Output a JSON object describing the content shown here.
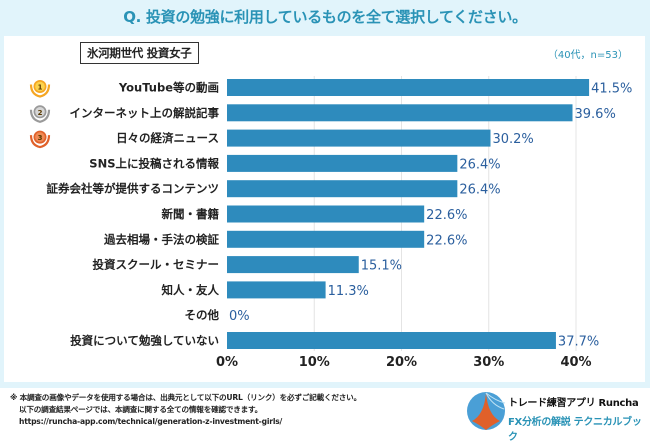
{
  "header": {
    "question": "Q. 投資の勉強に利用しているものを全て選択してください。",
    "segment_label": "氷河期世代 投資女子",
    "sample_note": "（40代，n=53）"
  },
  "colors": {
    "bar": "#2e8bbd",
    "value_label": "#2b5f9e",
    "title": "#2a93b6",
    "background": "#e1f4fb",
    "gold": "#f5a623",
    "silver": "#9a9a9a",
    "bronze": "#e0612a"
  },
  "chart_data": {
    "type": "bar",
    "orientation": "horizontal",
    "title": "Q. 投資の勉強に利用しているものを全て選択してください。",
    "categories": [
      "YouTube等の動画",
      "インターネット上の解説記事",
      "日々の経済ニュース",
      "SNS上に投稿される情報",
      "証券会社等が提供するコンテンツ",
      "新聞・書籍",
      "過去相場・手法の検証",
      "投資スクール・セミナー",
      "知人・友人",
      "その他",
      "投資について勉強していない"
    ],
    "values": [
      41.5,
      39.6,
      30.2,
      26.4,
      26.4,
      22.6,
      22.6,
      15.1,
      11.3,
      0,
      37.7
    ],
    "value_labels": [
      "41.5%",
      "39.6%",
      "30.2%",
      "26.4%",
      "26.4%",
      "22.6%",
      "22.6%",
      "15.1%",
      "11.3%",
      "0%",
      "37.7%"
    ],
    "rank_medals": [
      "1",
      "2",
      "3"
    ],
    "xlabel": "",
    "ylabel": "",
    "xlim": [
      0,
      40
    ],
    "xticks": [
      0,
      10,
      20,
      30,
      40
    ],
    "xtick_labels": [
      "0%",
      "10%",
      "20%",
      "30%",
      "40%"
    ],
    "grid": true,
    "legend": "none"
  },
  "footer": {
    "note_line1": "※ 本調査の画像やデータを使用する場合は、出典元として以下のURL（リンク）を必ずご記載ください。",
    "note_line2": "以下の調査結果ページでは、本調査に関する全ての情報を確認できます。",
    "url": "https://runcha-app.com/technical/generation-z-investment-girls/",
    "brand": "トレード練習アプリ Runcha",
    "tagline": "FX分析の解説 テクニカルブック"
  }
}
